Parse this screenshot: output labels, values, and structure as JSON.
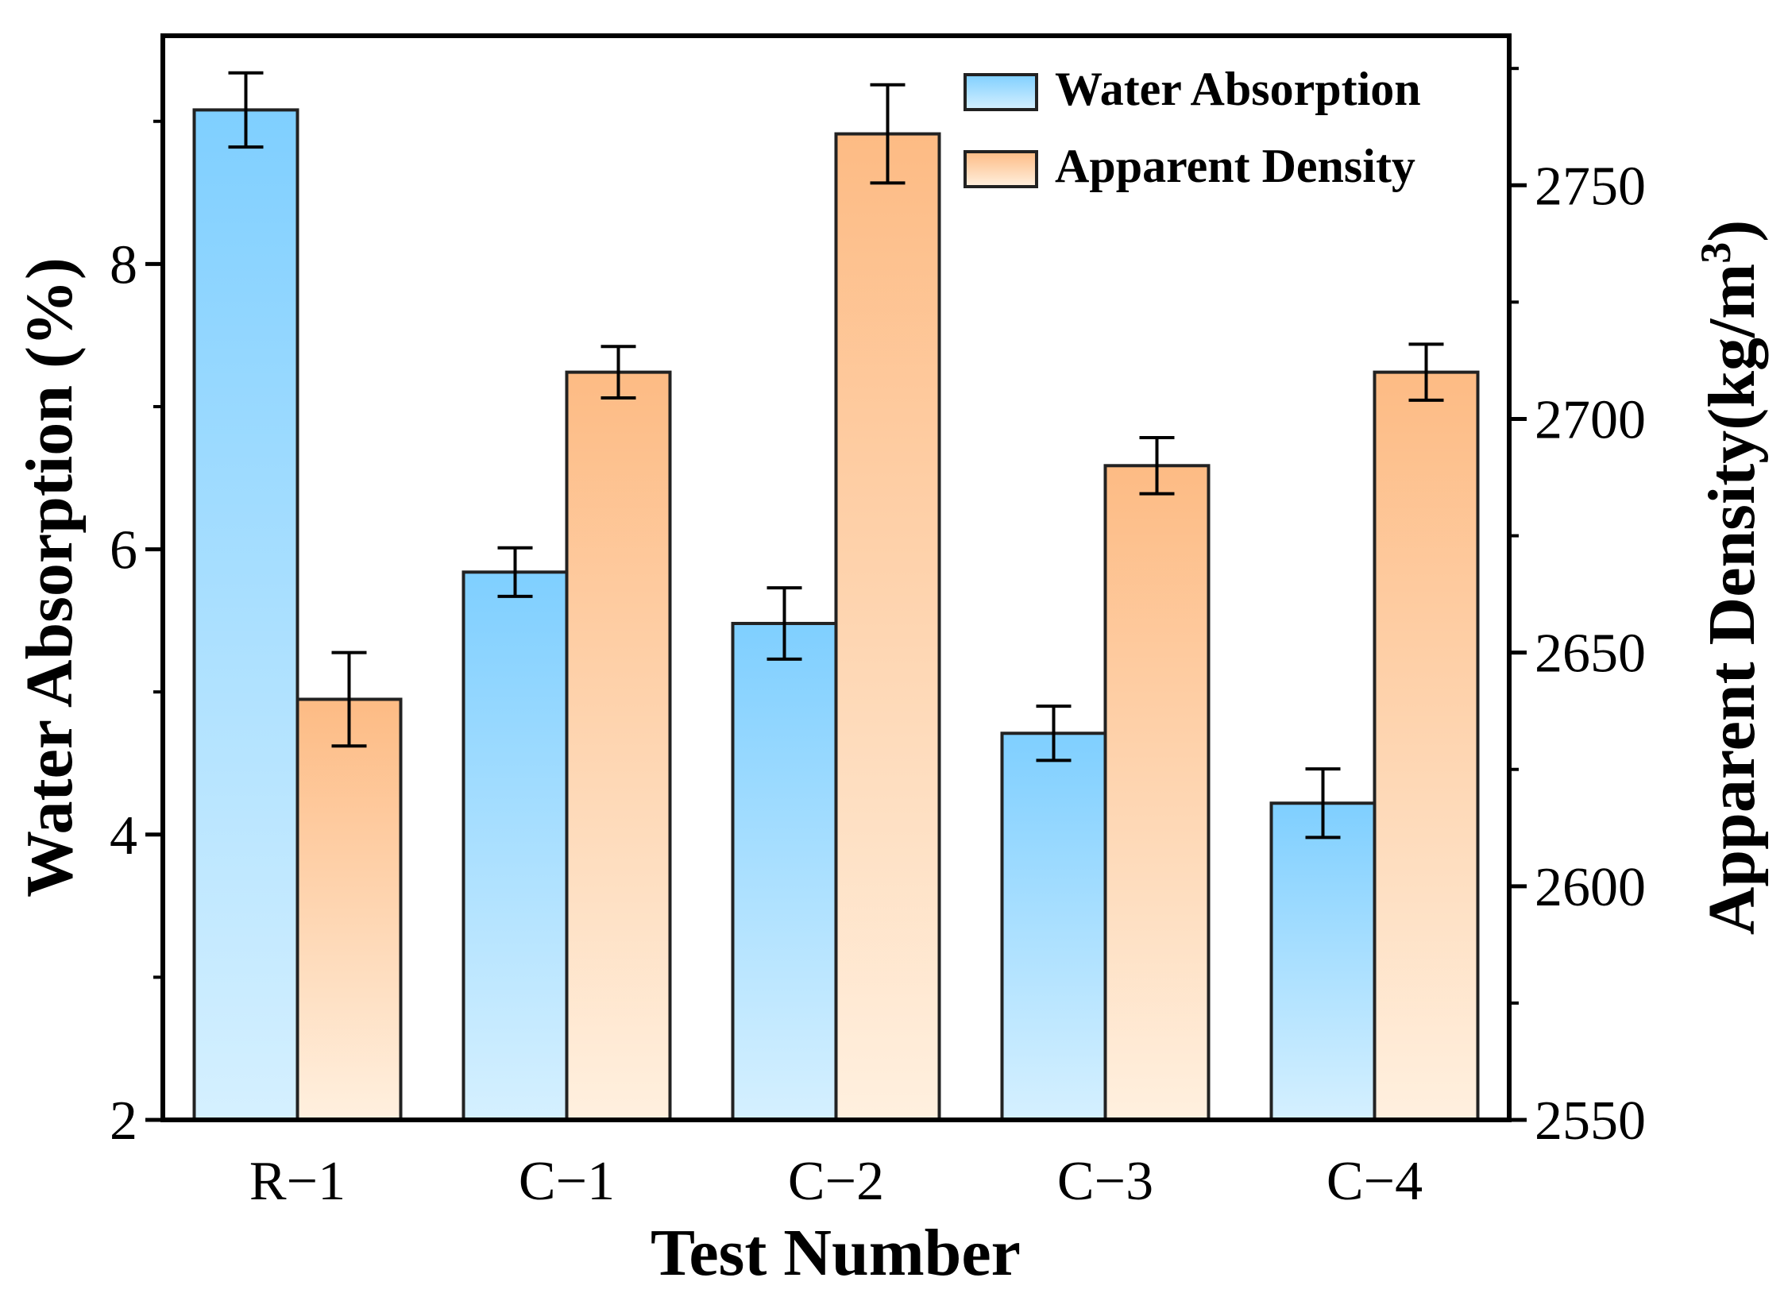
{
  "chart_data": {
    "type": "bar",
    "categories": [
      "R−1",
      "C−1",
      "C−2",
      "C−3",
      "C−4"
    ],
    "xlabel": "Test Number",
    "series": [
      {
        "name": "Water Absorption",
        "axis": "left",
        "values": [
          9.08,
          5.84,
          5.48,
          4.71,
          4.22
        ],
        "errors": [
          0.26,
          0.17,
          0.25,
          0.19,
          0.24
        ],
        "color_top": "#7fcfff",
        "color_bottom": "#d5f0ff"
      },
      {
        "name": "Apparent Density",
        "axis": "right",
        "values": [
          2640,
          2710,
          2761,
          2690,
          2710
        ],
        "errors": [
          10,
          5.5,
          10.5,
          6,
          6
        ],
        "color_top": "#fdbb84",
        "color_bottom": "#fff0df"
      }
    ],
    "y_left": {
      "label": "Water Absorption (%)",
      "lim": [
        2,
        9.6
      ],
      "ticks": [
        2,
        4,
        6,
        8
      ],
      "tick_labels": [
        "2",
        "4",
        "6",
        "8"
      ]
    },
    "y_right": {
      "label_main": "Apparent Density(kg/m",
      "label_sup": "3",
      "label_close": ")",
      "lim": [
        2550,
        2782
      ],
      "ticks": [
        2550,
        2600,
        2650,
        2700,
        2750
      ],
      "tick_labels": [
        "2550",
        "2600",
        "2650",
        "2700",
        "2750"
      ]
    },
    "grid": false,
    "legend_position": "top-right"
  }
}
